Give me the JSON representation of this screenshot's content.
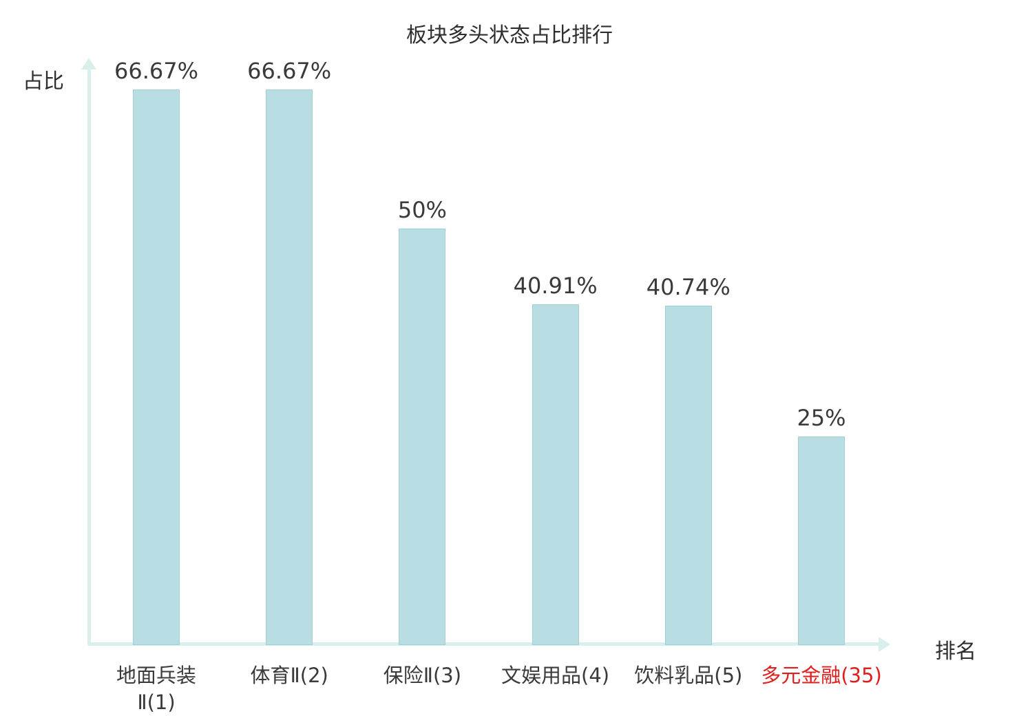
{
  "chart_data": {
    "type": "bar",
    "title": "板块多头状态占比排行",
    "xlabel": "排名",
    "ylabel": "占比",
    "ylim": [
      0,
      66.67
    ],
    "grid": false,
    "categories": [
      "地面兵装\nⅡ(1)",
      "体育Ⅱ(2)",
      "保险Ⅱ(3)",
      "文娱用品(4)",
      "饮料乳品(5)",
      "多元金融(35)"
    ],
    "values": [
      66.67,
      66.67,
      50,
      40.91,
      40.74,
      25
    ],
    "value_labels": [
      "66.67%",
      "66.67%",
      "50%",
      "40.91%",
      "40.74%",
      "25%"
    ],
    "category_colors": [
      "#3a3a3a",
      "#3a3a3a",
      "#3a3a3a",
      "#3a3a3a",
      "#3a3a3a",
      "#e01e1e"
    ],
    "bar_color": "#b8dde2",
    "bar_border_color": "#9ecfd7",
    "axis_color": "#d9efec",
    "text_color": "#3a3a3a",
    "highlight_color": "#e01e1e"
  }
}
